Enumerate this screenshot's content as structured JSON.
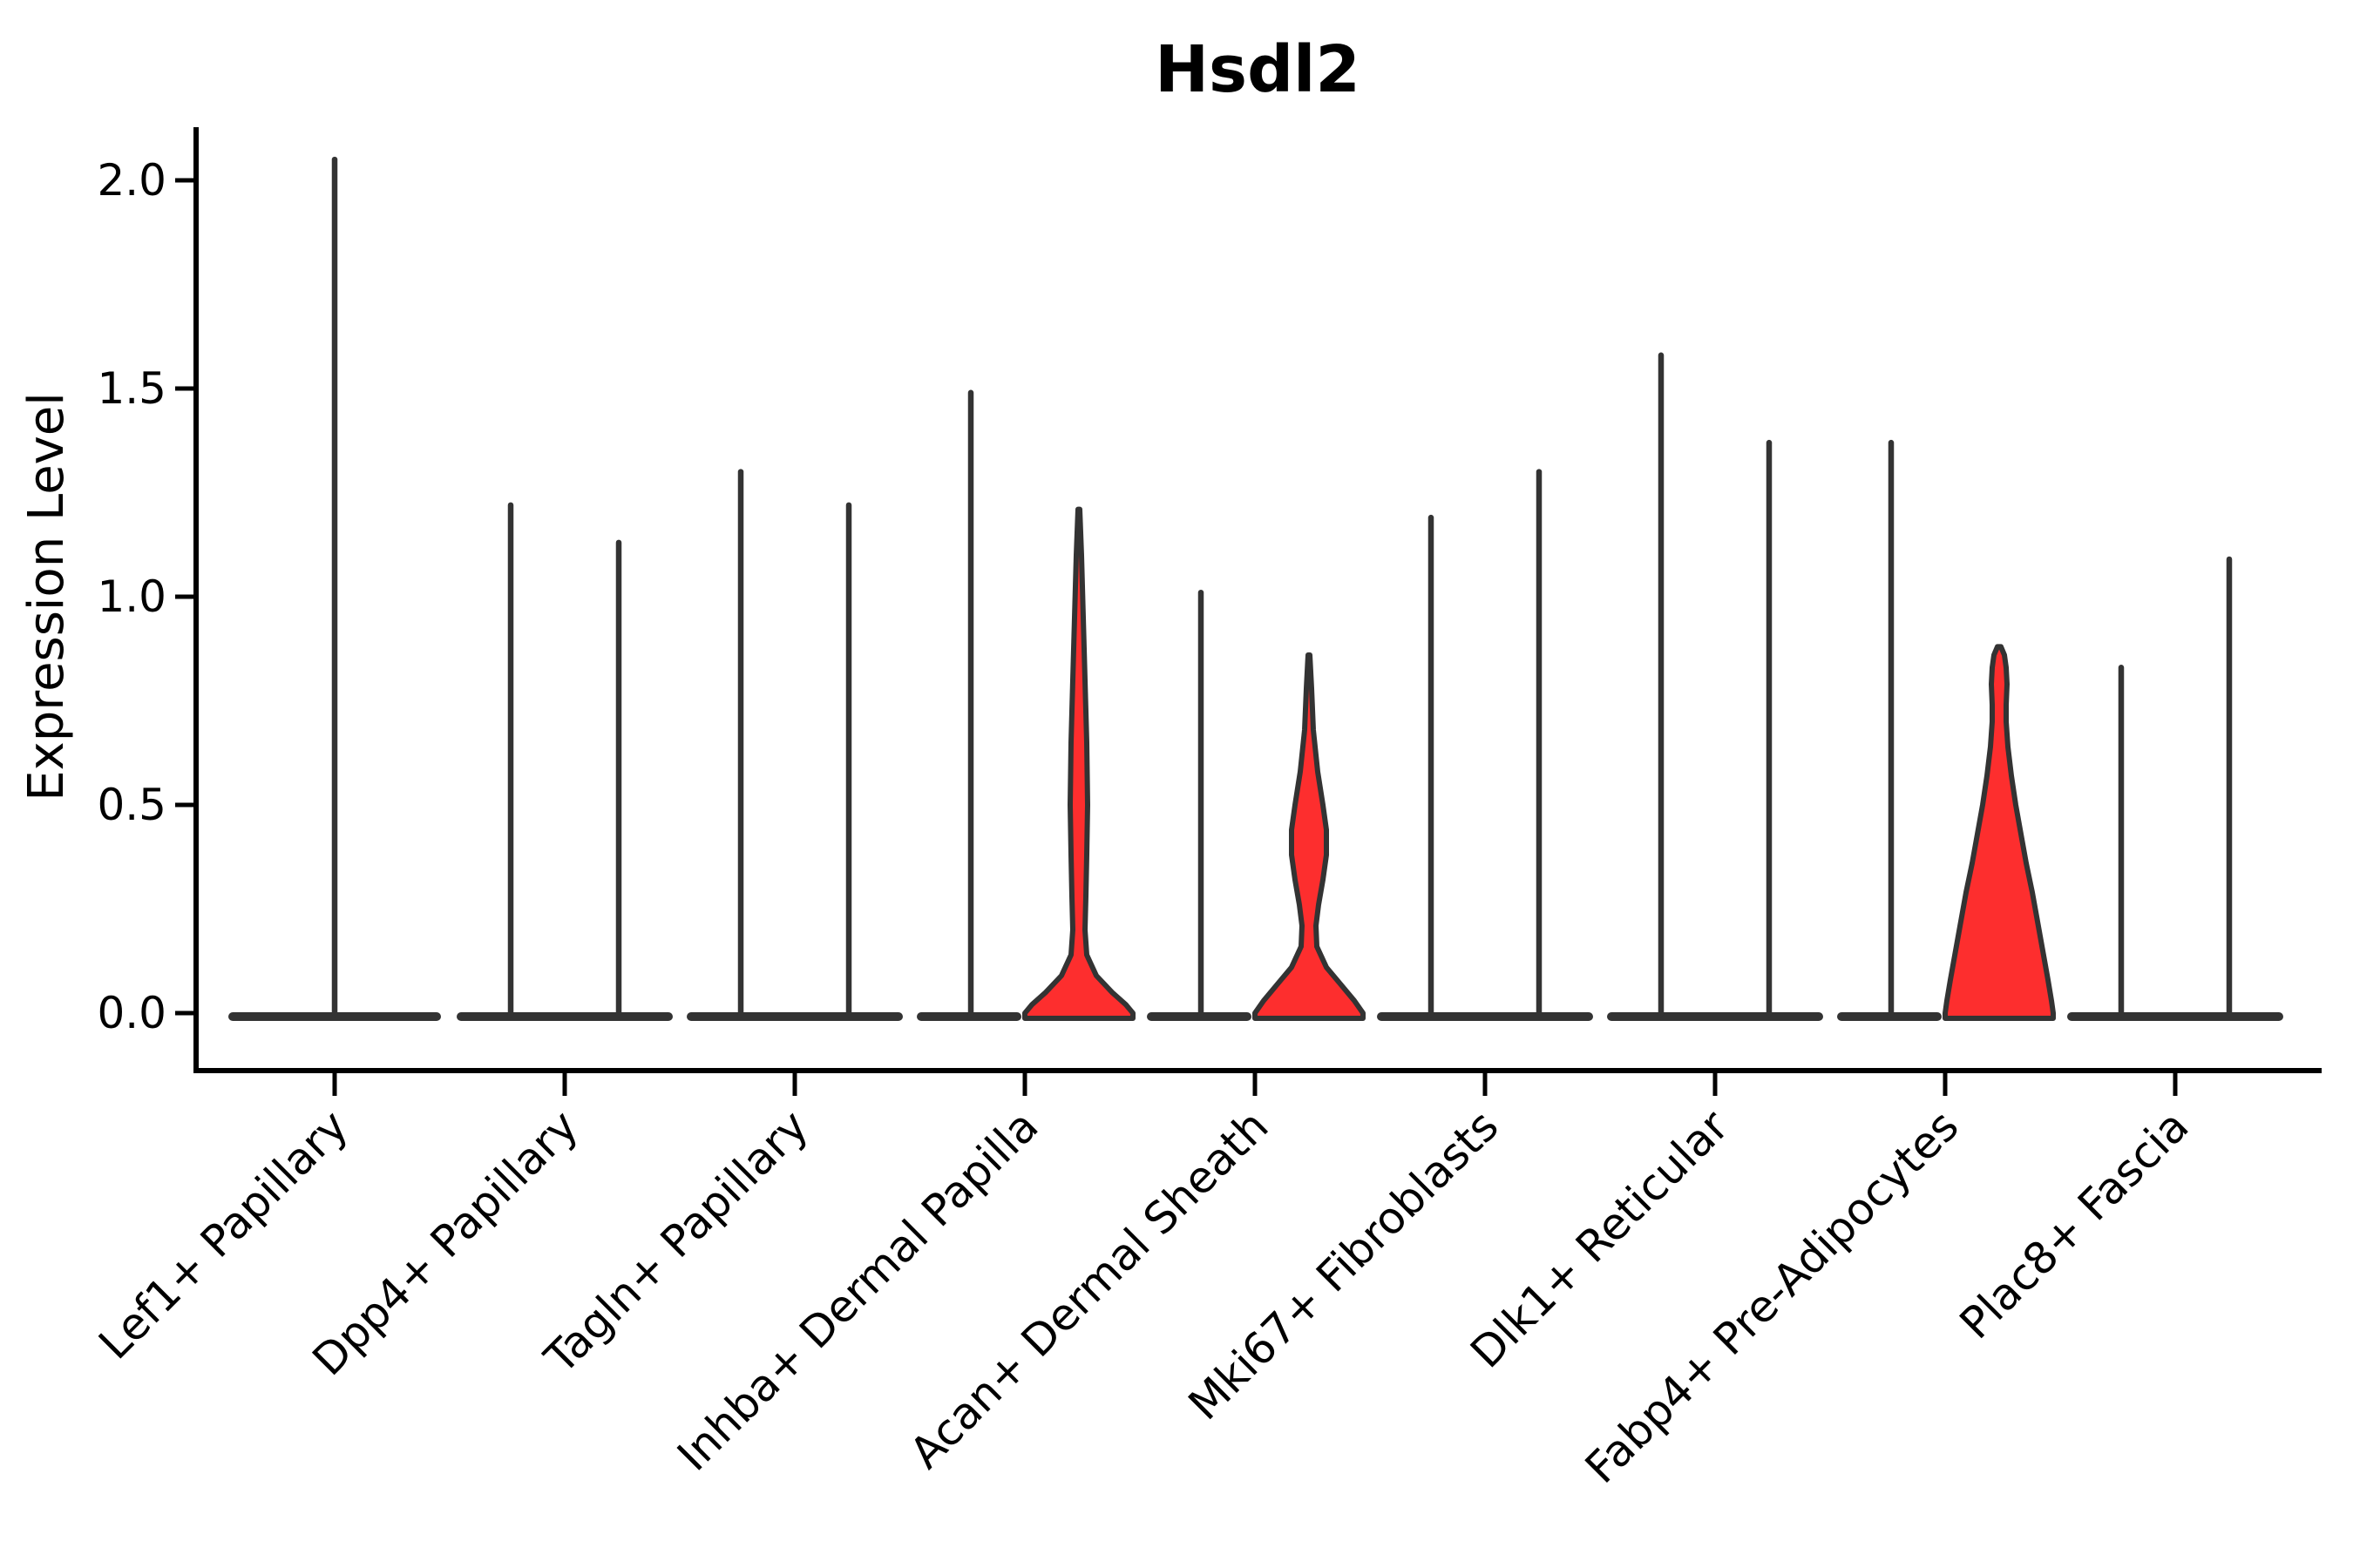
{
  "title": "Hsdl2",
  "y_axis": {
    "label": "Expression Level",
    "tick_labels": [
      "2.0",
      "1.5",
      "1.0",
      "0.5",
      "0.0"
    ],
    "tick_values": [
      2.0,
      1.5,
      1.0,
      0.5,
      0.0
    ]
  },
  "colors": {
    "violin_fill": "#fd2e2e",
    "violin_outline": "#333333",
    "axis": "#000000",
    "text": "#000000",
    "background": "#ffffff"
  },
  "chart_data": {
    "type": "violin",
    "title": "Hsdl2",
    "xlabel": "",
    "ylabel": "Expression Level",
    "ylim": [
      0,
      2.15
    ],
    "grid": false,
    "legend": "none",
    "categories": [
      {
        "label": "Lef1+ Papillary",
        "violins": [
          {
            "side": "center",
            "max": 2.05,
            "filled": false
          }
        ]
      },
      {
        "label": "Dpp4+ Papillary",
        "violins": [
          {
            "side": "left",
            "max": 1.22,
            "filled": false
          },
          {
            "side": "right",
            "max": 1.13,
            "filled": false
          }
        ]
      },
      {
        "label": "Tagln+ Papillary",
        "violins": [
          {
            "side": "left",
            "max": 1.3,
            "filled": false
          },
          {
            "side": "right",
            "max": 1.22,
            "filled": false
          }
        ]
      },
      {
        "label": "Inhba+ Dermal Papilla",
        "violins": [
          {
            "side": "left",
            "max": 1.49,
            "filled": false
          },
          {
            "side": "right",
            "max": 1.21,
            "filled": true,
            "profile": [
              [
                1.21,
                1
              ],
              [
                1.1,
                3
              ],
              [
                0.95,
                5
              ],
              [
                0.8,
                7
              ],
              [
                0.65,
                9
              ],
              [
                0.5,
                10
              ],
              [
                0.38,
                9
              ],
              [
                0.28,
                8
              ],
              [
                0.2,
                7
              ],
              [
                0.14,
                9
              ],
              [
                0.09,
                20
              ],
              [
                0.05,
                38
              ],
              [
                0.02,
                54
              ],
              [
                0.0,
                62
              ]
            ]
          }
        ]
      },
      {
        "label": "Acan+ Dermal Sheath",
        "violins": [
          {
            "side": "left",
            "max": 1.01,
            "filled": false
          },
          {
            "side": "right",
            "max": 0.86,
            "filled": true,
            "profile": [
              [
                0.86,
                1
              ],
              [
                0.78,
                3
              ],
              [
                0.68,
                5
              ],
              [
                0.58,
                10
              ],
              [
                0.5,
                16
              ],
              [
                0.44,
                20
              ],
              [
                0.38,
                20
              ],
              [
                0.32,
                16
              ],
              [
                0.26,
                11
              ],
              [
                0.21,
                8
              ],
              [
                0.16,
                9
              ],
              [
                0.11,
                20
              ],
              [
                0.07,
                36
              ],
              [
                0.03,
                52
              ],
              [
                0.0,
                62
              ]
            ]
          }
        ]
      },
      {
        "label": "Mki67+ Fibroblasts",
        "violins": [
          {
            "side": "left",
            "max": 1.19,
            "filled": false
          },
          {
            "side": "right",
            "max": 1.3,
            "filled": false
          }
        ]
      },
      {
        "label": "Dlk1+ Reticular",
        "violins": [
          {
            "side": "left",
            "max": 1.58,
            "filled": false
          },
          {
            "side": "right",
            "max": 1.37,
            "filled": false
          }
        ]
      },
      {
        "label": "Fabp4+ Pre-Adipocytes",
        "violins": [
          {
            "side": "left",
            "max": 1.37,
            "filled": false
          },
          {
            "side": "right",
            "max": 0.88,
            "filled": true,
            "profile": [
              [
                0.88,
                2
              ],
              [
                0.86,
                6
              ],
              [
                0.83,
                8
              ],
              [
                0.79,
                9
              ],
              [
                0.74,
                8
              ],
              [
                0.7,
                8
              ],
              [
                0.64,
                10
              ],
              [
                0.57,
                14
              ],
              [
                0.5,
                19
              ],
              [
                0.43,
                25
              ],
              [
                0.36,
                31
              ],
              [
                0.29,
                38
              ],
              [
                0.22,
                44
              ],
              [
                0.15,
                50
              ],
              [
                0.08,
                56
              ],
              [
                0.03,
                60
              ],
              [
                0.0,
                62
              ]
            ]
          }
        ]
      },
      {
        "label": "Plac8+ Fascia",
        "violins": [
          {
            "side": "left",
            "max": 0.83,
            "filled": false
          },
          {
            "side": "right",
            "max": 1.09,
            "filled": false
          }
        ]
      }
    ]
  }
}
